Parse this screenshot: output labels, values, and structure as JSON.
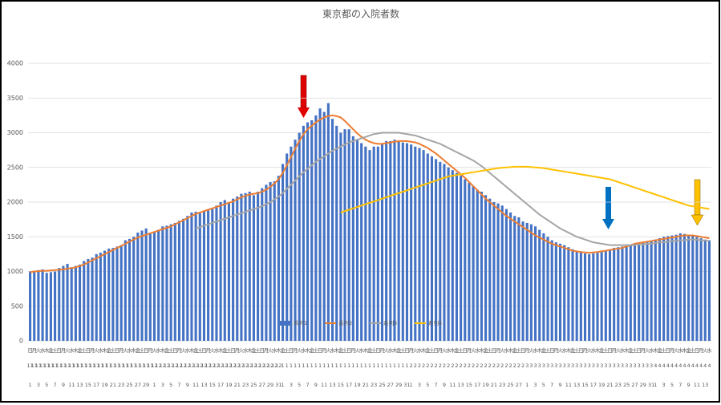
{
  "chart_data": {
    "type": "bar",
    "title": "東京都の入院者数",
    "weekdays": "日月火水木金土日月火水木金土日月火水木金土日月火水木金土日月火水木金土日月火水木金土日月火水木金土日月火水木金土日月火水木金土日月火水木金土日月火水木金土日月火水木金土日月火水木金土日月火水木金土日月火水木金土日月火水木金土日月火水木金土日月火水木金土日月火水木金土日月火水木金土日月火水木金土日月火水木金土日月火水木金土日月火水",
    "months": [
      11,
      11,
      11,
      11,
      11,
      11,
      11,
      11,
      11,
      11,
      11,
      11,
      11,
      11,
      11,
      11,
      11,
      11,
      11,
      11,
      11,
      11,
      11,
      11,
      11,
      11,
      11,
      11,
      11,
      11,
      12,
      12,
      12,
      12,
      12,
      12,
      12,
      12,
      12,
      12,
      12,
      12,
      12,
      12,
      12,
      12,
      12,
      12,
      12,
      12,
      12,
      12,
      12,
      12,
      12,
      12,
      12,
      12,
      12,
      12,
      12,
      1,
      1,
      1,
      1,
      1,
      1,
      1,
      1,
      1,
      1,
      1,
      1,
      1,
      1,
      1,
      1,
      1,
      1,
      1,
      1,
      1,
      1,
      1,
      1,
      1,
      1,
      1,
      1,
      1,
      1,
      1,
      2,
      2,
      2,
      2,
      2,
      2,
      2,
      2,
      2,
      2,
      2,
      2,
      2,
      2,
      2,
      2,
      2,
      2,
      2,
      2,
      2,
      2,
      2,
      2,
      2,
      2,
      2,
      2,
      3,
      3,
      3,
      3,
      3,
      3,
      3,
      3,
      3,
      3,
      3,
      3,
      3,
      3,
      3,
      3,
      3,
      3,
      3,
      3,
      3,
      3,
      3,
      3,
      3,
      3,
      3,
      3,
      3,
      3,
      3,
      4,
      4,
      4,
      4,
      4,
      4,
      4,
      4,
      4,
      4,
      4,
      4,
      4,
      4
    ],
    "categories": [
      1,
      null,
      3,
      null,
      5,
      null,
      7,
      null,
      9,
      null,
      11,
      null,
      13,
      null,
      15,
      null,
      17,
      null,
      19,
      null,
      21,
      null,
      23,
      null,
      25,
      null,
      27,
      null,
      29,
      null,
      1,
      null,
      3,
      null,
      5,
      null,
      7,
      null,
      9,
      null,
      11,
      null,
      13,
      null,
      15,
      null,
      17,
      null,
      19,
      null,
      21,
      null,
      23,
      null,
      25,
      null,
      27,
      null,
      29,
      null,
      31,
      1,
      null,
      3,
      null,
      5,
      null,
      7,
      null,
      9,
      null,
      11,
      null,
      13,
      null,
      15,
      null,
      17,
      null,
      19,
      null,
      21,
      null,
      23,
      null,
      25,
      null,
      27,
      null,
      29,
      null,
      31,
      1,
      null,
      3,
      null,
      5,
      null,
      7,
      null,
      9,
      null,
      11,
      null,
      13,
      null,
      15,
      null,
      17,
      null,
      19,
      null,
      21,
      null,
      23,
      null,
      25,
      null,
      27,
      null,
      1,
      null,
      3,
      null,
      5,
      null,
      7,
      null,
      9,
      null,
      11,
      null,
      13,
      null,
      15,
      null,
      17,
      null,
      19,
      null,
      21,
      null,
      23,
      null,
      25,
      null,
      27,
      null,
      29,
      null,
      31,
      1,
      null,
      3,
      null,
      5,
      null,
      7,
      null,
      9,
      null,
      11,
      null,
      13,
      null
    ],
    "ylim": [
      0,
      4000
    ],
    "yticks": [
      0,
      500,
      1000,
      1500,
      2000,
      2500,
      3000,
      3500,
      4000
    ],
    "grid": true,
    "legend": "bottom",
    "series": [
      {
        "name": "系列1",
        "type": "bar",
        "color": "#4472c4",
        "values": [
          1000,
          1010,
          1020,
          1030,
          980,
          990,
          1000,
          1050,
          1080,
          1110,
          1060,
          1080,
          1100,
          1150,
          1180,
          1200,
          1250,
          1270,
          1300,
          1330,
          1340,
          1360,
          1380,
          1450,
          1470,
          1500,
          1560,
          1590,
          1620,
          1560,
          1570,
          1600,
          1650,
          1660,
          1680,
          1700,
          1730,
          1760,
          1800,
          1850,
          1860,
          1840,
          1870,
          1880,
          1900,
          1950,
          2000,
          2030,
          2000,
          2050,
          2080,
          2120,
          2130,
          2150,
          2100,
          2150,
          2200,
          2250,
          2290,
          2300,
          2380,
          2550,
          2700,
          2800,
          2900,
          3000,
          3100,
          3150,
          3180,
          3250,
          3350,
          3300,
          3427,
          3200,
          3100,
          3000,
          3050,
          3050,
          2950,
          2900,
          2850,
          2800,
          2750,
          2800,
          2800,
          2850,
          2880,
          2880,
          2900,
          2870,
          2860,
          2850,
          2830,
          2800,
          2780,
          2750,
          2700,
          2660,
          2620,
          2580,
          2550,
          2500,
          2460,
          2420,
          2380,
          2330,
          2280,
          2230,
          2180,
          2150,
          2100,
          2050,
          2000,
          1980,
          1950,
          1900,
          1850,
          1800,
          1780,
          1720,
          1700,
          1680,
          1650,
          1600,
          1550,
          1500,
          1450,
          1420,
          1400,
          1380,
          1350,
          1320,
          1300,
          1280,
          1260,
          1250,
          1260,
          1270,
          1280,
          1300,
          1320,
          1340,
          1350,
          1360,
          1380,
          1390,
          1400,
          1410,
          1420,
          1430,
          1440,
          1460,
          1480,
          1500,
          1510,
          1520,
          1530,
          1550,
          1540,
          1530,
          1520,
          1500,
          1480,
          1460,
          1450
        ]
      },
      {
        "name": "系列2",
        "type": "line",
        "color": "#ed7d31",
        "values": [
          990,
          1000,
          1005,
          1010,
          1010,
          1015,
          1020,
          1025,
          1030,
          1040,
          1050,
          1060,
          1080,
          1100,
          1130,
          1160,
          1190,
          1220,
          1250,
          1280,
          1310,
          1340,
          1370,
          1400,
          1430,
          1460,
          1490,
          1510,
          1530,
          1550,
          1570,
          1590,
          1610,
          1630,
          1650,
          1680,
          1710,
          1740,
          1770,
          1800,
          1830,
          1850,
          1870,
          1890,
          1910,
          1930,
          1950,
          1970,
          1990,
          2010,
          2040,
          2070,
          2090,
          2110,
          2120,
          2130,
          2150,
          2180,
          2220,
          2270,
          2330,
          2420,
          2530,
          2650,
          2770,
          2880,
          2980,
          3050,
          3100,
          3150,
          3190,
          3220,
          3240,
          3250,
          3240,
          3220,
          3170,
          3110,
          3050,
          2990,
          2940,
          2900,
          2870,
          2850,
          2840,
          2840,
          2850,
          2860,
          2870,
          2880,
          2880,
          2880,
          2870,
          2860,
          2840,
          2810,
          2780,
          2740,
          2700,
          2650,
          2600,
          2550,
          2500,
          2450,
          2400,
          2350,
          2290,
          2230,
          2170,
          2110,
          2050,
          2000,
          1950,
          1900,
          1850,
          1800,
          1760,
          1720,
          1680,
          1640,
          1600,
          1560,
          1520,
          1490,
          1460,
          1430,
          1400,
          1380,
          1360,
          1340,
          1320,
          1300,
          1290,
          1280,
          1275,
          1270,
          1275,
          1280,
          1290,
          1300,
          1310,
          1320,
          1330,
          1340,
          1360,
          1380,
          1400,
          1410,
          1420,
          1430,
          1440,
          1450,
          1460,
          1470,
          1480,
          1490,
          1500,
          1510,
          1520,
          1520,
          1520,
          1510,
          1500,
          1490,
          1480
        ]
      },
      {
        "name": "系列3",
        "type": "line",
        "color": "#a5a5a5",
        "values": [
          null,
          null,
          null,
          null,
          null,
          null,
          null,
          null,
          null,
          null,
          null,
          null,
          null,
          null,
          null,
          null,
          null,
          null,
          null,
          null,
          null,
          null,
          null,
          null,
          null,
          null,
          null,
          null,
          null,
          null,
          null,
          null,
          null,
          null,
          null,
          null,
          null,
          null,
          null,
          null,
          1620,
          1640,
          1660,
          1680,
          1700,
          1720,
          1740,
          1760,
          1780,
          1800,
          1820,
          1840,
          1860,
          1880,
          1900,
          1920,
          1940,
          1970,
          2000,
          2040,
          2080,
          2130,
          2190,
          2250,
          2310,
          2370,
          2430,
          2480,
          2530,
          2580,
          2620,
          2660,
          2700,
          2740,
          2770,
          2800,
          2830,
          2860,
          2880,
          2900,
          2920,
          2940,
          2960,
          2980,
          2990,
          3000,
          3000,
          3000,
          3000,
          3000,
          2990,
          2980,
          2970,
          2960,
          2940,
          2920,
          2900,
          2880,
          2860,
          2840,
          2810,
          2780,
          2750,
          2720,
          2690,
          2660,
          2630,
          2600,
          2560,
          2520,
          2470,
          2420,
          2370,
          2320,
          2270,
          2220,
          2170,
          2120,
          2070,
          2020,
          1970,
          1920,
          1870,
          1820,
          1780,
          1740,
          1700,
          1660,
          1620,
          1590,
          1560,
          1530,
          1500,
          1480,
          1460,
          1440,
          1420,
          1410,
          1400,
          1390,
          1380,
          1380,
          1380,
          1380,
          1380,
          1380,
          1380,
          1390,
          1390,
          1400,
          1400,
          1410,
          1420,
          1420,
          1430,
          1440,
          1440,
          1450,
          1450,
          1460,
          1460,
          1460,
          1450,
          1450,
          1440
        ]
      },
      {
        "name": "系列4",
        "type": "line",
        "color": "#ffc000",
        "values": [
          null,
          null,
          null,
          null,
          null,
          null,
          null,
          null,
          null,
          null,
          null,
          null,
          null,
          null,
          null,
          null,
          null,
          null,
          null,
          null,
          null,
          null,
          null,
          null,
          null,
          null,
          null,
          null,
          null,
          null,
          null,
          null,
          null,
          null,
          null,
          null,
          null,
          null,
          null,
          null,
          null,
          null,
          null,
          null,
          null,
          null,
          null,
          null,
          null,
          null,
          null,
          null,
          null,
          null,
          null,
          null,
          null,
          null,
          null,
          null,
          null,
          null,
          null,
          null,
          null,
          null,
          null,
          null,
          null,
          null,
          null,
          null,
          null,
          null,
          null,
          1850,
          1870,
          1890,
          1910,
          1930,
          1950,
          1970,
          1990,
          2010,
          2030,
          2050,
          2070,
          2090,
          2110,
          2130,
          2150,
          2170,
          2190,
          2210,
          2230,
          2250,
          2270,
          2290,
          2310,
          2330,
          2350,
          2370,
          2380,
          2390,
          2400,
          2410,
          2420,
          2430,
          2440,
          2450,
          2460,
          2470,
          2480,
          2490,
          2495,
          2500,
          2505,
          2510,
          2510,
          2510,
          2510,
          2505,
          2500,
          2495,
          2490,
          2480,
          2470,
          2460,
          2450,
          2440,
          2430,
          2420,
          2410,
          2400,
          2390,
          2380,
          2370,
          2360,
          2350,
          2340,
          2330,
          2310,
          2290,
          2270,
          2250,
          2230,
          2210,
          2190,
          2170,
          2150,
          2130,
          2110,
          2090,
          2070,
          2050,
          2030,
          2010,
          1990,
          1970,
          1950,
          1940,
          1930,
          1920,
          1910,
          1900
        ]
      }
    ]
  }
}
